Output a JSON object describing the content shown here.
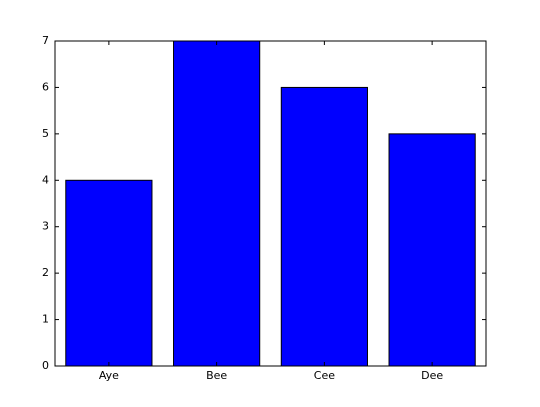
{
  "chart_data": {
    "type": "bar",
    "categories": [
      "Aye",
      "Bee",
      "Cee",
      "Dee"
    ],
    "values": [
      4,
      7,
      6,
      5
    ],
    "color": "#0000ff",
    "ylim": [
      0,
      7
    ],
    "yticks": [
      0,
      1,
      2,
      3,
      4,
      5,
      6,
      7
    ],
    "grid": false
  }
}
